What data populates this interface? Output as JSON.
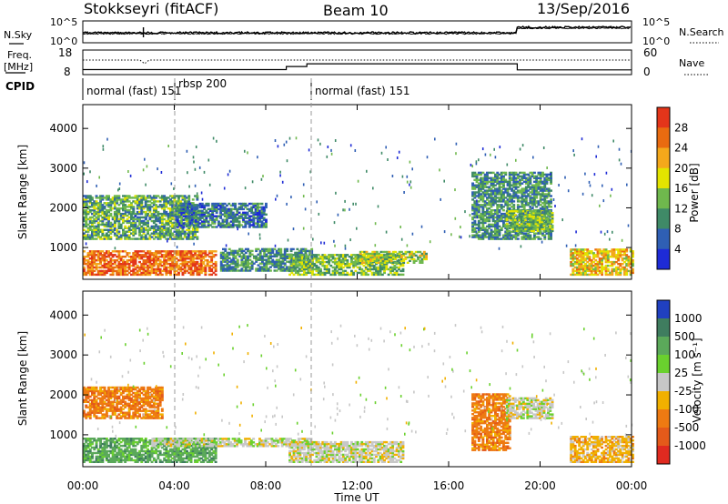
{
  "header": {
    "radar": "Stokkseyri (fitACF)",
    "beam": "Beam 10",
    "date": "13/Sep/2016"
  },
  "top_panels": {
    "nsky_label": "N.Sky",
    "nsky_top_tick": "10^5",
    "nsky_bottom_tick": "10^0",
    "nsearch_label": "N.Search",
    "nsearch_top_tick": "10^5",
    "nsearch_bottom_tick": "10^0",
    "freq_label": "Freq.",
    "freq_unit": "[MHz]",
    "freq_top_tick": "18",
    "freq_bottom_tick": "8",
    "nave_label": "Nave",
    "nave_top_tick": "60",
    "nave_bottom_tick": "0",
    "cpid_label": "CPID",
    "cpid_segments": [
      {
        "text": "normal (fast) 151",
        "start_hr": 0.0
      },
      {
        "text": "rbsp 200",
        "start_hr": 4.0
      },
      {
        "text": "normal (fast) 151",
        "start_hr": 10.0
      }
    ]
  },
  "power_panel": {
    "ylabel": "Slant Range [km]",
    "yticks": [
      "1000",
      "2000",
      "3000",
      "4000"
    ],
    "colorbar_label": "Power [dB]",
    "colorbar_ticks": [
      "4",
      "8",
      "12",
      "16",
      "20",
      "24",
      "28"
    ],
    "colors": [
      "#1e2bd6",
      "#2f5fb4",
      "#3f8a67",
      "#6fb84d",
      "#e3e400",
      "#f4a81b",
      "#e96b10",
      "#e3351a"
    ]
  },
  "velocity_panel": {
    "ylabel": "Slant Range [km]",
    "yticks": [
      "1000",
      "2000",
      "3000",
      "4000"
    ],
    "colorbar_label": "Velocity [m s⁻¹]",
    "colorbar_ticks": [
      "1000",
      "500",
      "100",
      "25",
      "-25",
      "-100",
      "-500",
      "-1000"
    ],
    "colors": [
      "#2040c0",
      "#3f7d5f",
      "#5ba95a",
      "#6ad12e",
      "#c7c7c7",
      "#f1b000",
      "#ee7a12",
      "#e45a1a",
      "#e02a20"
    ]
  },
  "x_axis": {
    "label": "Time UT",
    "ticks": [
      "00:00",
      "04:00",
      "08:00",
      "12:00",
      "16:00",
      "20:00",
      "00:00"
    ]
  },
  "chart_data": {
    "type": "heatmap",
    "title": "Stokkseyri (fitACF)  Beam 10  13/Sep/2016",
    "x_unit": "hours UT",
    "xlim": [
      0,
      24
    ],
    "ylim": [
      200,
      4600
    ],
    "xlabel": "Time UT",
    "ylabel": "Slant Range [km]",
    "frequency_MHz": [
      {
        "x": 0,
        "y": 9.5
      },
      {
        "x": 2.5,
        "y": 9.5
      },
      {
        "x": 5,
        "y": 9.5
      },
      {
        "x": 8.9,
        "y": 9.5
      },
      {
        "x": 8.9,
        "y": 11.0
      },
      {
        "x": 9.8,
        "y": 11.0
      },
      {
        "x": 9.8,
        "y": 12.3
      },
      {
        "x": 19.0,
        "y": 12.3
      },
      {
        "x": 19.0,
        "y": 9.4
      },
      {
        "x": 24,
        "y": 9.4
      }
    ],
    "power_regions": [
      {
        "t0": 0.0,
        "t1": 5.8,
        "r0": 300,
        "r1": 900,
        "dB": 24
      },
      {
        "t0": 0.0,
        "t1": 5.0,
        "r0": 1200,
        "r1": 2300,
        "dB": 10
      },
      {
        "t0": 4.0,
        "t1": 8.0,
        "r0": 1500,
        "r1": 2100,
        "dB": 6
      },
      {
        "t0": 6.0,
        "t1": 10.0,
        "r0": 400,
        "r1": 950,
        "dB": 8
      },
      {
        "t0": 9.0,
        "t1": 14.0,
        "r0": 300,
        "r1": 800,
        "dB": 12
      },
      {
        "t0": 12.0,
        "t1": 15.0,
        "r0": 600,
        "r1": 900,
        "dB": 14
      },
      {
        "t0": 17.0,
        "t1": 20.5,
        "r0": 1200,
        "r1": 2900,
        "dB": 8
      },
      {
        "t0": 18.5,
        "t1": 20.5,
        "r0": 1400,
        "r1": 1900,
        "dB": 12
      },
      {
        "t0": 21.3,
        "t1": 24.0,
        "r0": 300,
        "r1": 950,
        "dB": 18
      }
    ],
    "velocity_regions": [
      {
        "t0": 0.0,
        "t1": 5.8,
        "r0": 300,
        "r1": 900,
        "v": 100
      },
      {
        "t0": 0.0,
        "t1": 3.5,
        "r0": 1400,
        "r1": 2200,
        "v": -500
      },
      {
        "t0": 3.0,
        "t1": 10.0,
        "r0": 700,
        "r1": 900,
        "v": 0
      },
      {
        "t0": 9.0,
        "t1": 14.0,
        "r0": 300,
        "r1": 800,
        "v": 0
      },
      {
        "t0": 17.0,
        "t1": 18.7,
        "r0": 600,
        "r1": 2000,
        "v": -500
      },
      {
        "t0": 18.5,
        "t1": 20.5,
        "r0": 1400,
        "r1": 1900,
        "v": 0
      },
      {
        "t0": 21.3,
        "t1": 24.0,
        "r0": 300,
        "r1": 950,
        "v": -200
      }
    ]
  }
}
